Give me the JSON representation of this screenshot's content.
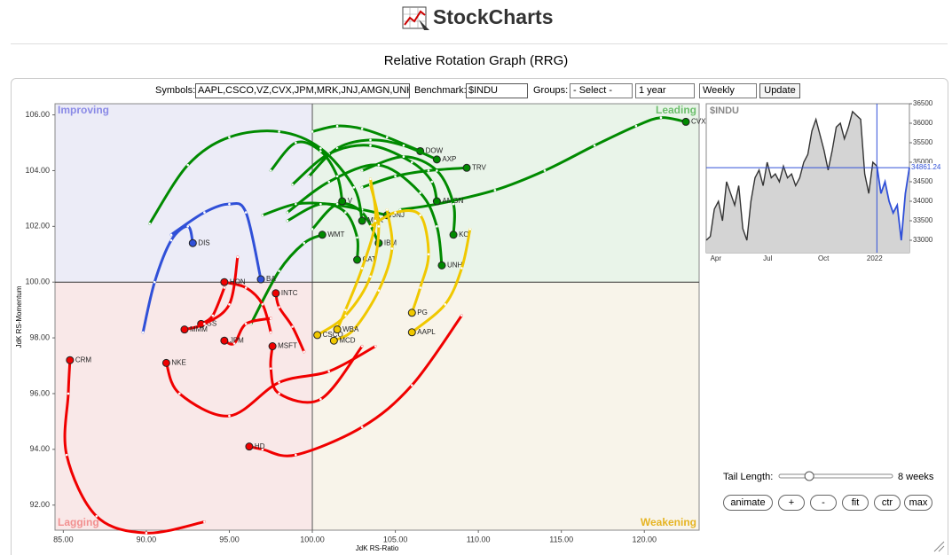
{
  "header": {
    "logo": "StockCharts",
    "title": "Relative Rotation Graph (RRG)"
  },
  "controls": {
    "symbols_label": "Symbols:",
    "symbols": "AAPL,CSCO,VZ,CVX,JPM,MRK,JNJ,AMGN,UNH,I",
    "benchmark_label": "Benchmark:",
    "benchmark": "$INDU",
    "groups_label": "Groups:",
    "groups": "- Select -",
    "period": "1 year",
    "frequency": "Weekly",
    "update": "Update"
  },
  "chart_data": [
    {
      "type": "rrg",
      "x_label": "JdK RS-Ratio",
      "y_label": "JdK RS-Momentum",
      "center": [
        100,
        100
      ],
      "xlim": [
        84.5,
        123.3
      ],
      "ylim": [
        91.1,
        106.4
      ],
      "xticks": [
        {
          "value": 85,
          "label": "85.00"
        },
        {
          "value": 90,
          "label": "90.00"
        },
        {
          "value": 95,
          "label": "95.00"
        },
        {
          "value": 100,
          "label": "100.00"
        },
        {
          "value": 105,
          "label": "105.00"
        },
        {
          "value": 110,
          "label": "110.00"
        },
        {
          "value": 115,
          "label": "115.00"
        },
        {
          "value": 120,
          "label": "120.00"
        }
      ],
      "yticks": [
        {
          "value": 92,
          "label": "92.00"
        },
        {
          "value": 94,
          "label": "94.00"
        },
        {
          "value": 96,
          "label": "96.00"
        },
        {
          "value": 98,
          "label": "98.00"
        },
        {
          "value": 100,
          "label": "100.00"
        },
        {
          "value": 102,
          "label": "102.00"
        },
        {
          "value": 104,
          "label": "104.00"
        },
        {
          "value": 106,
          "label": "106.00"
        }
      ],
      "quadrants": [
        {
          "name": "Improving",
          "color": "#ececf7",
          "text_color": "#8a8ae6"
        },
        {
          "name": "Leading",
          "color": "#e9f4e9",
          "text_color": "#6cbf6c"
        },
        {
          "name": "Lagging",
          "color": "#f9e8e8",
          "text_color": "#f29090"
        },
        {
          "name": "Weakening",
          "color": "#f8f4ea",
          "text_color": "#e6b422"
        }
      ],
      "series": [
        {
          "name": "CVX",
          "color": "#008a00",
          "ratio": [
            105.3,
            107.5,
            111,
            114,
            117,
            119.5,
            121,
            122.5
          ],
          "momentum": [
            102.6,
            102.8,
            103.3,
            104,
            104.9,
            105.6,
            105.9,
            105.75
          ]
        },
        {
          "name": "DOW",
          "color": "#008a00",
          "ratio": [
            100,
            101.5,
            103,
            104.5,
            106.5
          ],
          "momentum": [
            105.4,
            105.6,
            105.5,
            105.2,
            104.7
          ]
        },
        {
          "name": "AXP",
          "color": "#008a00",
          "ratio": [
            99.8,
            101.5,
            103.5,
            105.5,
            107.5
          ],
          "momentum": [
            103.8,
            104.8,
            105.1,
            104.9,
            104.4
          ]
        },
        {
          "name": "TRV",
          "color": "#008a00",
          "ratio": [
            103,
            105,
            107,
            109.3
          ],
          "momentum": [
            103.4,
            103.8,
            104,
            104.1
          ]
        },
        {
          "name": "AMGN",
          "color": "#008a00",
          "ratio": [
            98.8,
            101,
            103.5,
            106,
            107.2,
            107.5
          ],
          "momentum": [
            103.5,
            104.6,
            104.9,
            104.3,
            103.6,
            102.9
          ]
        },
        {
          "name": "KO",
          "color": "#008a00",
          "ratio": [
            103,
            105.5,
            107.5,
            108.5,
            108.5
          ],
          "momentum": [
            104,
            104.5,
            104,
            102.8,
            101.7
          ]
        },
        {
          "name": "UNH",
          "color": "#008a00",
          "ratio": [
            98.5,
            101,
            104,
            106.5,
            107.5,
            107.8
          ],
          "momentum": [
            102.5,
            103.6,
            104.2,
            103.2,
            102,
            100.6
          ]
        },
        {
          "name": "JNJ",
          "color": "#008a00",
          "ratio": [
            97,
            99,
            101,
            103,
            104.5
          ],
          "momentum": [
            102.4,
            102.8,
            102.8,
            102.6,
            102.4
          ]
        },
        {
          "name": "IBM",
          "color": "#008a00",
          "ratio": [
            100,
            101.5,
            103,
            104
          ],
          "momentum": [
            101.9,
            102.8,
            102.5,
            101.4
          ]
        },
        {
          "name": "CAT",
          "color": "#008a00",
          "ratio": [
            98.5,
            100.5,
            102,
            102.7,
            102.7
          ],
          "momentum": [
            102.2,
            102.8,
            102.5,
            101.6,
            100.8
          ]
        },
        {
          "name": "V",
          "color": "#008a00",
          "ratio": [
            97.5,
            99,
            100.5,
            101.5,
            101.8
          ],
          "momentum": [
            104,
            105,
            104.7,
            103.8,
            102.9
          ]
        },
        {
          "name": "WMT",
          "color": "#008a00",
          "ratio": [
            96.3,
            98,
            99.5,
            100.6
          ],
          "momentum": [
            98.5,
            100.4,
            101.4,
            101.7
          ]
        },
        {
          "name": "MRK",
          "color": "#008a00",
          "ratio": [
            90.2,
            92.5,
            95,
            98,
            100.5,
            102.5,
            103
          ],
          "momentum": [
            102.1,
            104.2,
            105.2,
            105.4,
            104.8,
            103.4,
            102.2
          ]
        },
        {
          "name": "PG",
          "color": "#f0c800",
          "ratio": [
            103.5,
            105,
            106.5,
            107,
            106.5,
            106
          ],
          "momentum": [
            102,
            102.5,
            102.4,
            101,
            99.8,
            98.9
          ]
        },
        {
          "name": "AAPL",
          "color": "#f0c800",
          "ratio": [
            109.5,
            109,
            108,
            106
          ],
          "momentum": [
            101.9,
            100.5,
            99.2,
            98.2
          ]
        },
        {
          "name": "CSCO",
          "color": "#f0c800",
          "ratio": [
            103.5,
            104,
            103.5,
            102,
            100.3
          ],
          "momentum": [
            103.5,
            102,
            100.2,
            98.8,
            98.1
          ]
        },
        {
          "name": "MCD",
          "color": "#f0c800",
          "ratio": [
            104.5,
            104.8,
            104,
            102.5,
            101.3
          ],
          "momentum": [
            102.6,
            101.2,
            99.7,
            98.3,
            97.9
          ]
        },
        {
          "name": "WBA",
          "color": "#f0c800",
          "ratio": [
            103.5,
            103.8,
            103,
            102,
            101.5
          ],
          "momentum": [
            103.7,
            102.2,
            100.5,
            99,
            98.3
          ]
        },
        {
          "name": "CRM",
          "color": "#f00000",
          "ratio": [
            93.5,
            90,
            87,
            85.2,
            85.3,
            85.4
          ],
          "momentum": [
            91.4,
            91,
            91.6,
            93.8,
            96,
            97.2
          ]
        },
        {
          "name": "NKE",
          "color": "#f00000",
          "ratio": [
            103.8,
            101,
            98,
            95,
            92,
            91.2
          ],
          "momentum": [
            97.7,
            96.8,
            96.4,
            95.2,
            96,
            97.1
          ]
        },
        {
          "name": "HD",
          "color": "#f00000",
          "ratio": [
            109,
            106,
            103,
            99,
            97,
            96.2
          ],
          "momentum": [
            98.8,
            96.3,
            94.8,
            93.8,
            94,
            94.1
          ]
        },
        {
          "name": "MSFT",
          "color": "#f00000",
          "ratio": [
            103,
            100.5,
            98,
            97.5,
            97.6
          ],
          "momentum": [
            97.7,
            95.8,
            96,
            96.9,
            97.7
          ]
        },
        {
          "name": "JPM",
          "color": "#f00000",
          "ratio": [
            97.5,
            96,
            95.3,
            94.7
          ],
          "momentum": [
            98.7,
            98.5,
            97.8,
            97.9
          ]
        },
        {
          "name": "GS",
          "color": "#f00000",
          "ratio": [
            94.7,
            94,
            93.3
          ],
          "momentum": [
            99.8,
            98.8,
            98.5
          ]
        },
        {
          "name": "MMM",
          "color": "#f00000",
          "ratio": [
            95.5,
            95,
            93.5,
            92.3
          ],
          "momentum": [
            100.9,
            99.2,
            98.5,
            98.3
          ]
        },
        {
          "name": "HON",
          "color": "#f00000",
          "ratio": [
            97.5,
            97,
            96,
            94.7
          ],
          "momentum": [
            98.2,
            99.2,
            99.8,
            100
          ]
        },
        {
          "name": "INTC",
          "color": "#f00000",
          "ratio": [
            99.5,
            98.8,
            98,
            97.8
          ],
          "momentum": [
            97.5,
            98.4,
            99.1,
            99.6
          ]
        },
        {
          "name": "DIS",
          "color": "#3050d8",
          "ratio": [
            89.8,
            90.5,
            91.5,
            92.5,
            92.8
          ],
          "momentum": [
            98.2,
            100,
            101.5,
            102,
            101.4
          ]
        },
        {
          "name": "BA",
          "color": "#3050d8",
          "ratio": [
            91.5,
            93.5,
            95,
            96,
            96.9
          ],
          "momentum": [
            101.7,
            102.5,
            102.8,
            102.5,
            100.1
          ]
        }
      ]
    },
    {
      "type": "line",
      "name": "$INDU",
      "color": "#333333",
      "tail_color": "#3050d8",
      "fill": "#d4d4d4",
      "ylim": [
        32682,
        36500
      ],
      "yticks": [
        33000,
        33500,
        34000,
        34500,
        35000,
        35500,
        36000,
        36500
      ],
      "x_labels": [
        "Apr",
        "Jul",
        "Oct",
        "2022"
      ],
      "values": [
        33000,
        33100,
        33800,
        34000,
        33500,
        34500,
        34200,
        33900,
        34400,
        33300,
        33000,
        34000,
        34600,
        34800,
        34400,
        35000,
        34600,
        34700,
        34500,
        34900,
        34600,
        34700,
        34400,
        34600,
        35000,
        35200,
        35800,
        36100,
        35700,
        35300,
        34800,
        35300,
        35900,
        36000,
        35600,
        35900,
        36300,
        36200,
        36100,
        34700,
        34200,
        35000,
        34900,
        34200,
        34500,
        34000,
        33700,
        33900,
        33000,
        34200,
        34861.24
      ]
    }
  ],
  "tail": {
    "label": "Tail Length:",
    "weeks": {
      "value": 8,
      "label": "8 weeks"
    }
  },
  "buttons": [
    "animate",
    "+",
    "-",
    "fit",
    "ctr",
    "max"
  ]
}
